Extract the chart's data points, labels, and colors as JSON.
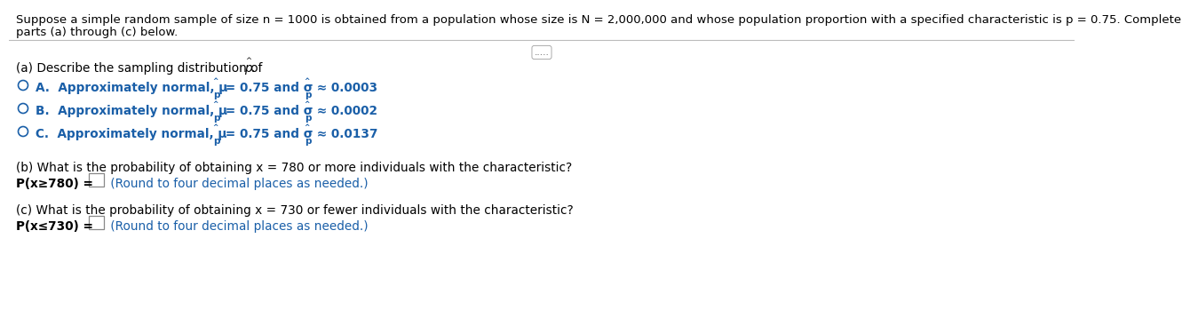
{
  "bg_color": "#ffffff",
  "text_color": "#000000",
  "blue_color": "#1a5fa8",
  "hint_color": "#1a5fa8",
  "separator_color": "#bbbbbb",
  "header_line1": "Suppose a simple random sample of size n = 1000 is obtained from a population whose size is N = 2,000,000 and whose population proportion with a specified characteristic is p = 0.75. Complete",
  "header_line2": "parts (a) through (c) below.",
  "dots": ".....",
  "part_a": "(a) Describe the sampling distribution of p.",
  "opt_A_pre": "A.  Approximately normal, μ",
  "opt_A_mid": " = 0.75 and σ",
  "opt_A_val": " ≈ 0.0003",
  "opt_B_pre": "B.  Approximately normal, μ",
  "opt_B_mid": " = 0.75 and σ",
  "opt_B_val": " ≈ 0.0002",
  "opt_C_pre": "C.  Approximately normal, μ",
  "opt_C_mid": " = 0.75 and σ",
  "opt_C_val": " ≈ 0.0137",
  "sub_label": "p",
  "part_b_q": "(b) What is the probability of obtaining x = 780 or more individuals with the characteristic?",
  "part_b_eq": "P(x≥780) =",
  "part_b_hint": " (Round to four decimal places as needed.)",
  "part_c_q": "(c) What is the probability of obtaining x = 730 or fewer individuals with the characteristic?",
  "part_c_eq": "P(x≤730) =",
  "part_c_hint": " (Round to four decimal places as needed.)",
  "header_fs": 9.5,
  "body_fs": 9.8,
  "opt_fs": 9.8,
  "sub_fs": 7.5
}
